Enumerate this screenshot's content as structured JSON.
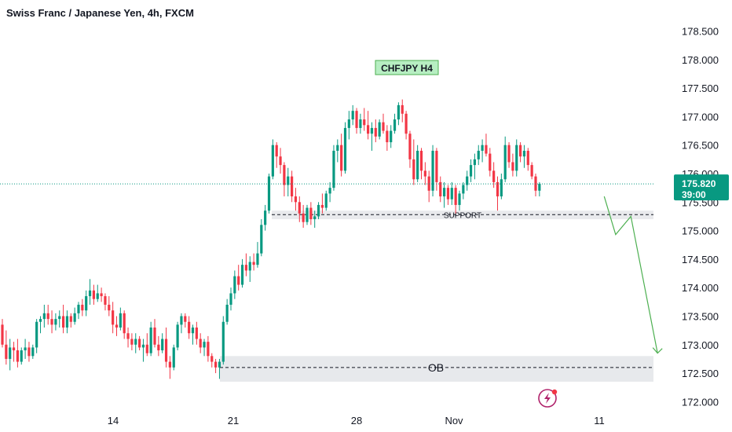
{
  "title": "Swiss Franc / Japanese Yen, 4h, FXCM",
  "colors": {
    "up": "#089981",
    "down": "#f23645",
    "accent": "#2962ff",
    "arrow": "#4caf50",
    "zone": "#dfe1e6",
    "tag_bg": "#b7eec2",
    "tag_border": "#4caf50",
    "price_bg": "#089981"
  },
  "chart_data": {
    "type": "candlestick",
    "symbol_tag": "CHFJPY H4",
    "y_ticks": [
      "178.500",
      "178.000",
      "177.500",
      "177.000",
      "176.500",
      "176.000",
      "175.500",
      "175.000",
      "174.500",
      "174.000",
      "173.500",
      "173.000",
      "172.500",
      "172.000"
    ],
    "ylim": [
      171.95,
      178.7
    ],
    "x_ticks": [
      "14",
      "21",
      "28",
      "Nov",
      "11"
    ],
    "last_price": "175.820",
    "countdown": "39:00",
    "zones": [
      {
        "label": "SUPPORT",
        "low": 175.2,
        "high": 175.35,
        "mid": 175.28
      },
      {
        "label": "OB",
        "low": 172.35,
        "high": 172.8,
        "mid": 172.6
      }
    ],
    "projection": [
      {
        "bar": 158,
        "price": 175.6
      },
      {
        "bar": 161,
        "price": 174.93
      },
      {
        "bar": 165,
        "price": 175.25
      },
      {
        "bar": 172,
        "price": 172.85
      }
    ],
    "candles": [
      [
        173.35,
        173.45,
        172.95,
        173.0
      ],
      [
        173.0,
        173.25,
        172.65,
        172.75
      ],
      [
        172.75,
        173.1,
        172.55,
        172.95
      ],
      [
        172.95,
        173.05,
        172.7,
        172.9
      ],
      [
        172.9,
        173.1,
        172.6,
        172.7
      ],
      [
        172.7,
        172.95,
        172.65,
        172.9
      ],
      [
        172.9,
        173.1,
        172.75,
        172.95
      ],
      [
        172.95,
        173.05,
        172.7,
        172.8
      ],
      [
        172.8,
        173.0,
        172.75,
        172.95
      ],
      [
        172.95,
        173.45,
        172.85,
        173.4
      ],
      [
        173.4,
        173.5,
        173.2,
        173.45
      ],
      [
        173.45,
        173.7,
        173.3,
        173.55
      ],
      [
        173.55,
        173.7,
        173.35,
        173.45
      ],
      [
        173.45,
        173.6,
        173.2,
        173.35
      ],
      [
        173.35,
        173.55,
        173.25,
        173.45
      ],
      [
        173.45,
        173.6,
        173.3,
        173.5
      ],
      [
        173.5,
        173.7,
        173.2,
        173.3
      ],
      [
        173.3,
        173.6,
        173.2,
        173.5
      ],
      [
        173.5,
        173.55,
        173.3,
        173.4
      ],
      [
        173.4,
        173.65,
        173.35,
        173.55
      ],
      [
        173.55,
        173.75,
        173.45,
        173.7
      ],
      [
        173.7,
        173.8,
        173.5,
        173.6
      ],
      [
        173.6,
        173.95,
        173.5,
        173.85
      ],
      [
        173.85,
        174.15,
        173.7,
        173.95
      ],
      [
        173.95,
        174.05,
        173.7,
        173.8
      ],
      [
        173.8,
        174.05,
        173.75,
        173.9
      ],
      [
        173.9,
        174.0,
        173.75,
        173.85
      ],
      [
        173.85,
        173.9,
        173.6,
        173.7
      ],
      [
        173.7,
        173.85,
        173.5,
        173.6
      ],
      [
        173.6,
        173.75,
        173.2,
        173.35
      ],
      [
        173.35,
        173.5,
        173.15,
        173.3
      ],
      [
        173.3,
        173.65,
        173.25,
        173.55
      ],
      [
        173.55,
        173.6,
        173.1,
        173.2
      ],
      [
        173.2,
        173.3,
        172.95,
        173.1
      ],
      [
        173.1,
        173.2,
        172.9,
        173.0
      ],
      [
        173.0,
        173.2,
        172.85,
        173.1
      ],
      [
        173.1,
        173.15,
        172.9,
        172.95
      ],
      [
        172.95,
        173.1,
        172.7,
        173.0
      ],
      [
        173.0,
        173.2,
        172.8,
        172.85
      ],
      [
        172.85,
        173.4,
        172.8,
        173.3
      ],
      [
        173.3,
        173.45,
        172.95,
        173.0
      ],
      [
        173.0,
        173.15,
        172.8,
        172.9
      ],
      [
        172.9,
        173.2,
        172.85,
        173.1
      ],
      [
        173.1,
        173.3,
        172.6,
        172.7
      ],
      [
        172.7,
        172.8,
        172.4,
        172.6
      ],
      [
        172.6,
        173.0,
        172.55,
        172.95
      ],
      [
        172.95,
        173.4,
        172.9,
        173.35
      ],
      [
        173.35,
        173.55,
        173.2,
        173.5
      ],
      [
        173.5,
        173.55,
        173.3,
        173.4
      ],
      [
        173.4,
        173.5,
        173.1,
        173.2
      ],
      [
        173.2,
        173.35,
        173.0,
        173.3
      ],
      [
        173.3,
        173.4,
        173.0,
        173.1
      ],
      [
        173.1,
        173.2,
        172.85,
        172.95
      ],
      [
        172.95,
        173.1,
        172.8,
        173.05
      ],
      [
        173.05,
        173.15,
        172.7,
        172.8
      ],
      [
        172.8,
        172.85,
        172.6,
        172.7
      ],
      [
        172.7,
        172.75,
        172.5,
        172.6
      ],
      [
        172.6,
        172.75,
        172.4,
        172.7
      ],
      [
        172.7,
        173.5,
        172.65,
        173.4
      ],
      [
        173.4,
        173.8,
        173.35,
        173.7
      ],
      [
        173.7,
        174.0,
        173.6,
        173.9
      ],
      [
        173.9,
        174.3,
        173.8,
        174.2
      ],
      [
        174.2,
        174.4,
        173.95,
        174.05
      ],
      [
        174.05,
        174.5,
        174.0,
        174.4
      ],
      [
        174.4,
        174.6,
        174.2,
        174.3
      ],
      [
        174.3,
        174.55,
        174.1,
        174.45
      ],
      [
        174.45,
        174.6,
        174.3,
        174.4
      ],
      [
        174.4,
        174.8,
        174.35,
        174.6
      ],
      [
        174.6,
        175.2,
        174.55,
        175.1
      ],
      [
        175.1,
        175.45,
        175.0,
        175.35
      ],
      [
        175.35,
        176.0,
        175.3,
        175.95
      ],
      [
        175.95,
        176.6,
        175.9,
        176.5
      ],
      [
        176.5,
        176.55,
        176.1,
        176.3
      ],
      [
        176.3,
        176.45,
        176.0,
        176.15
      ],
      [
        176.15,
        176.2,
        175.6,
        175.8
      ],
      [
        175.8,
        176.1,
        175.6,
        175.95
      ],
      [
        175.95,
        176.05,
        175.5,
        175.6
      ],
      [
        175.6,
        175.75,
        175.35,
        175.5
      ],
      [
        175.5,
        175.6,
        175.15,
        175.3
      ],
      [
        175.3,
        175.45,
        175.05,
        175.15
      ],
      [
        175.15,
        175.45,
        175.1,
        175.4
      ],
      [
        175.4,
        175.5,
        175.1,
        175.2
      ],
      [
        175.2,
        175.35,
        175.05,
        175.25
      ],
      [
        175.25,
        175.5,
        175.2,
        175.45
      ],
      [
        175.45,
        175.65,
        175.3,
        175.4
      ],
      [
        175.4,
        175.7,
        175.35,
        175.65
      ],
      [
        175.65,
        175.85,
        175.5,
        175.75
      ],
      [
        175.75,
        176.5,
        175.7,
        176.4
      ],
      [
        176.4,
        176.6,
        176.2,
        176.5
      ],
      [
        176.5,
        176.7,
        175.95,
        176.05
      ],
      [
        176.05,
        176.9,
        176.0,
        176.8
      ],
      [
        176.8,
        177.1,
        176.6,
        176.95
      ],
      [
        176.95,
        177.2,
        176.85,
        177.1
      ],
      [
        177.1,
        177.15,
        176.7,
        176.8
      ],
      [
        176.8,
        177.05,
        176.7,
        176.95
      ],
      [
        176.95,
        177.15,
        176.75,
        176.85
      ],
      [
        176.85,
        177.1,
        176.6,
        176.7
      ],
      [
        176.7,
        176.9,
        176.4,
        176.8
      ],
      [
        176.8,
        176.95,
        176.55,
        176.65
      ],
      [
        176.65,
        176.95,
        176.6,
        176.9
      ],
      [
        176.9,
        177.05,
        176.7,
        176.75
      ],
      [
        176.75,
        176.85,
        176.4,
        176.55
      ],
      [
        176.55,
        176.85,
        176.45,
        176.75
      ],
      [
        176.75,
        177.05,
        176.7,
        176.95
      ],
      [
        176.95,
        177.25,
        176.85,
        177.2
      ],
      [
        177.2,
        177.3,
        176.9,
        177.05
      ],
      [
        177.05,
        177.1,
        176.6,
        176.7
      ],
      [
        176.7,
        176.75,
        176.1,
        176.25
      ],
      [
        176.25,
        176.6,
        175.8,
        175.9
      ],
      [
        175.9,
        176.5,
        175.85,
        176.4
      ],
      [
        176.4,
        176.45,
        175.9,
        176.05
      ],
      [
        176.05,
        176.2,
        175.8,
        175.95
      ],
      [
        175.95,
        176.05,
        175.5,
        175.7
      ],
      [
        175.7,
        176.5,
        175.6,
        176.4
      ],
      [
        176.4,
        176.45,
        175.7,
        175.85
      ],
      [
        175.85,
        175.95,
        175.5,
        175.6
      ],
      [
        175.6,
        175.85,
        175.4,
        175.75
      ],
      [
        175.75,
        175.8,
        175.45,
        175.55
      ],
      [
        175.55,
        175.85,
        175.45,
        175.75
      ],
      [
        175.75,
        175.8,
        175.3,
        175.45
      ],
      [
        175.45,
        175.7,
        175.35,
        175.65
      ],
      [
        175.65,
        175.85,
        175.55,
        175.8
      ],
      [
        175.8,
        176.05,
        175.7,
        175.95
      ],
      [
        175.95,
        176.25,
        175.85,
        176.15
      ],
      [
        176.15,
        176.35,
        175.9,
        176.25
      ],
      [
        176.25,
        176.5,
        176.15,
        176.4
      ],
      [
        176.4,
        176.6,
        176.2,
        176.5
      ],
      [
        176.5,
        176.7,
        176.3,
        176.35
      ],
      [
        176.35,
        176.45,
        175.95,
        176.05
      ],
      [
        176.05,
        176.2,
        175.75,
        175.85
      ],
      [
        175.85,
        175.95,
        175.35,
        175.6
      ],
      [
        175.6,
        176.0,
        175.55,
        175.9
      ],
      [
        175.9,
        176.65,
        175.85,
        176.5
      ],
      [
        176.5,
        176.55,
        176.1,
        176.2
      ],
      [
        176.2,
        176.35,
        175.95,
        176.05
      ],
      [
        176.05,
        176.6,
        175.95,
        176.5
      ],
      [
        176.5,
        176.55,
        176.2,
        176.3
      ],
      [
        176.3,
        176.5,
        176.1,
        176.4
      ],
      [
        176.4,
        176.45,
        176.05,
        176.15
      ],
      [
        176.15,
        176.2,
        175.9,
        175.95
      ],
      [
        175.95,
        176.0,
        175.6,
        175.7
      ],
      [
        175.7,
        175.85,
        175.6,
        175.82
      ]
    ]
  }
}
